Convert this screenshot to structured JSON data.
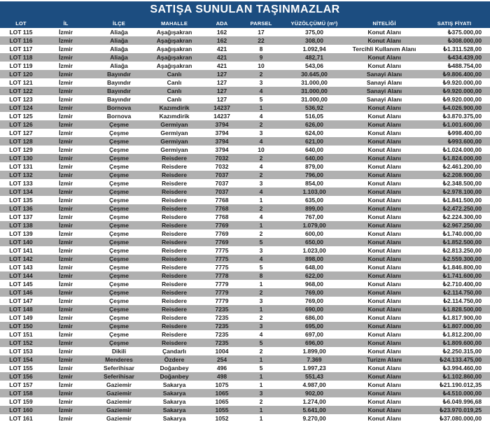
{
  "title": "SATIŞA SUNULAN TAŞINMAZLAR",
  "columns": [
    "LOT",
    "İL",
    "İLÇE",
    "MAHALLE",
    "ADA",
    "PARSEL",
    "YÜZÖLÇÜMÜ (m²)",
    "NİTELİĞİ",
    "SATIŞ FİYATI"
  ],
  "colors": {
    "header_bg": "#1c4d80",
    "header_text": "#ffffff",
    "row_bg": "#ffffff",
    "row_alt_bg": "#b0b0b0",
    "cell_text": "#1d1d1d"
  },
  "rows": [
    [
      "LOT 115",
      "İzmir",
      "Aliağa",
      "Aşağışakran",
      "162",
      "17",
      "375,00",
      "Konut Alanı",
      "₺375.000,00"
    ],
    [
      "LOT 116",
      "İzmir",
      "Aliağa",
      "Aşağışakran",
      "162",
      "22",
      "308,00",
      "Konut Alanı",
      "₺308.000,00"
    ],
    [
      "LOT 117",
      "İzmir",
      "Aliağa",
      "Aşağışakran",
      "421",
      "8",
      "1.092,94",
      "Tercihli Kullanım Alanı",
      "₺1.311.528,00"
    ],
    [
      "LOT 118",
      "İzmir",
      "Aliağa",
      "Aşağışakran",
      "421",
      "9",
      "482,71",
      "Konut Alanı",
      "₺434.439,00"
    ],
    [
      "LOT 119",
      "İzmir",
      "Aliağa",
      "Aşağışakran",
      "421",
      "10",
      "543,06",
      "Konut Alanı",
      "₺488.754,00"
    ],
    [
      "LOT 120",
      "İzmir",
      "Bayındır",
      "Canlı",
      "127",
      "2",
      "30.645,00",
      "Sanayi Alanı",
      "₺9.806.400,00"
    ],
    [
      "LOT 121",
      "İzmir",
      "Bayındır",
      "Canlı",
      "127",
      "3",
      "31.000,00",
      "Sanayi Alanı",
      "₺9.920.000,00"
    ],
    [
      "LOT 122",
      "İzmir",
      "Bayındır",
      "Canlı",
      "127",
      "4",
      "31.000,00",
      "Sanayi Alanı",
      "₺9.920.000,00"
    ],
    [
      "LOT 123",
      "İzmir",
      "Bayındır",
      "Canlı",
      "127",
      "5",
      "31.000,00",
      "Sanayi Alanı",
      "₺9.920.000,00"
    ],
    [
      "LOT 124",
      "İzmir",
      "Bornova",
      "Kazımdirik",
      "14237",
      "1",
      "536,92",
      "Konut Alanı",
      "₺4.026.900,00"
    ],
    [
      "LOT 125",
      "İzmir",
      "Bornova",
      "Kazımdirik",
      "14237",
      "4",
      "516,05",
      "Konut Alanı",
      "₺3.870.375,00"
    ],
    [
      "LOT 126",
      "İzmir",
      "Çeşme",
      "Germiyan",
      "3794",
      "2",
      "626,00",
      "Konut Alanı",
      "₺1.001.600,00"
    ],
    [
      "LOT 127",
      "İzmir",
      "Çeşme",
      "Germiyan",
      "3794",
      "3",
      "624,00",
      "Konut Alanı",
      "₺998.400,00"
    ],
    [
      "LOT 128",
      "İzmir",
      "Çeşme",
      "Germiyan",
      "3794",
      "4",
      "621,00",
      "Konut Alanı",
      "₺993.600,00"
    ],
    [
      "LOT 129",
      "İzmir",
      "Çeşme",
      "Germiyan",
      "3794",
      "10",
      "640,00",
      "Konut Alanı",
      "₺1.024.000,00"
    ],
    [
      "LOT 130",
      "İzmir",
      "Çeşme",
      "Reisdere",
      "7032",
      "2",
      "640,00",
      "Konut Alanı",
      "₺1.824.000,00"
    ],
    [
      "LOT 131",
      "İzmir",
      "Çeşme",
      "Reisdere",
      "7032",
      "4",
      "879,00",
      "Konut Alanı",
      "₺2.461.200,00"
    ],
    [
      "LOT 132",
      "İzmir",
      "Çeşme",
      "Reisdere",
      "7037",
      "2",
      "796,00",
      "Konut Alanı",
      "₺2.208.900,00"
    ],
    [
      "LOT 133",
      "İzmir",
      "Çeşme",
      "Reisdere",
      "7037",
      "3",
      "854,00",
      "Konut Alanı",
      "₺2.348.500,00"
    ],
    [
      "LOT 134",
      "İzmir",
      "Çeşme",
      "Reisdere",
      "7037",
      "4",
      "1.103,00",
      "Konut Alanı",
      "₺2.978.100,00"
    ],
    [
      "LOT 135",
      "İzmir",
      "Çeşme",
      "Reisdere",
      "7768",
      "1",
      "635,00",
      "Konut Alanı",
      "₺1.841.500,00"
    ],
    [
      "LOT 136",
      "İzmir",
      "Çeşme",
      "Reisdere",
      "7768",
      "2",
      "899,00",
      "Konut Alanı",
      "₺2.472.250,00"
    ],
    [
      "LOT 137",
      "İzmir",
      "Çeşme",
      "Reisdere",
      "7768",
      "4",
      "767,00",
      "Konut Alanı",
      "₺2.224.300,00"
    ],
    [
      "LOT 138",
      "İzmir",
      "Çeşme",
      "Reisdere",
      "7769",
      "1",
      "1.079,00",
      "Konut Alanı",
      "₺2.967.250,00"
    ],
    [
      "LOT 139",
      "İzmir",
      "Çeşme",
      "Reisdere",
      "7769",
      "2",
      "600,00",
      "Konut Alanı",
      "₺1.740.000,00"
    ],
    [
      "LOT 140",
      "İzmir",
      "Çeşme",
      "Reisdere",
      "7769",
      "5",
      "650,00",
      "Konut Alanı",
      "₺1.852.500,00"
    ],
    [
      "LOT 141",
      "İzmir",
      "Çeşme",
      "Reisdere",
      "7775",
      "3",
      "1.023,00",
      "Konut Alanı",
      "₺2.813.250,00"
    ],
    [
      "LOT 142",
      "İzmir",
      "Çeşme",
      "Reisdere",
      "7775",
      "4",
      "898,00",
      "Konut Alanı",
      "₺2.559.300,00"
    ],
    [
      "LOT 143",
      "İzmir",
      "Çeşme",
      "Reisdere",
      "7775",
      "5",
      "648,00",
      "Konut Alanı",
      "₺1.846.800,00"
    ],
    [
      "LOT 144",
      "İzmir",
      "Çeşme",
      "Reisdere",
      "7778",
      "8",
      "622,00",
      "Konut Alanı",
      "₺1.741.600,00"
    ],
    [
      "LOT 145",
      "İzmir",
      "Çeşme",
      "Reisdere",
      "7779",
      "1",
      "968,00",
      "Konut Alanı",
      "₺2.710.400,00"
    ],
    [
      "LOT 146",
      "İzmir",
      "Çeşme",
      "Reisdere",
      "7779",
      "2",
      "769,00",
      "Konut Alanı",
      "₺2.114.750,00"
    ],
    [
      "LOT 147",
      "İzmir",
      "Çeşme",
      "Reisdere",
      "7779",
      "3",
      "769,00",
      "Konut Alanı",
      "₺2.114.750,00"
    ],
    [
      "LOT 148",
      "İzmir",
      "Çeşme",
      "Reisdere",
      "7235",
      "1",
      "690,00",
      "Konut Alanı",
      "₺1.828.500,00"
    ],
    [
      "LOT 149",
      "İzmir",
      "Çeşme",
      "Reisdere",
      "7235",
      "2",
      "686,00",
      "Konut Alanı",
      "₺1.817.900,00"
    ],
    [
      "LOT 150",
      "İzmir",
      "Çeşme",
      "Reisdere",
      "7235",
      "3",
      "695,00",
      "Konut Alanı",
      "₺1.807.000,00"
    ],
    [
      "LOT 151",
      "İzmir",
      "Çeşme",
      "Reisdere",
      "7235",
      "4",
      "697,00",
      "Konut Alanı",
      "₺1.812.200,00"
    ],
    [
      "LOT 152",
      "İzmir",
      "Çeşme",
      "Reisdere",
      "7235",
      "5",
      "696,00",
      "Konut Alanı",
      "₺1.809.600,00"
    ],
    [
      "LOT 153",
      "İzmir",
      "Dikili",
      "Çandarlı",
      "1004",
      "2",
      "1.899,00",
      "Konut Alanı",
      "₺2.250.315,00"
    ],
    [
      "LOT 154",
      "İzmir",
      "Menderes",
      "Özdere",
      "254",
      "1",
      "7.369",
      "Turizm Alanı",
      "₺24.133.475,00"
    ],
    [
      "LOT 155",
      "İzmir",
      "Seferihisar",
      "Doğanbey",
      "496",
      "5",
      "1.997,23",
      "Konut Alanı",
      "₺3.994.460,00"
    ],
    [
      "LOT 156",
      "İzmir",
      "Seferihisar",
      "Doğanbey",
      "498",
      "1",
      "551,43",
      "Konut Alanı",
      "₺1.102.860,00"
    ],
    [
      "LOT 157",
      "İzmir",
      "Gaziemir",
      "Sakarya",
      "1075",
      "1",
      "4.987,00",
      "Konut Alanı",
      "₺21.190.012,35"
    ],
    [
      "LOT 158",
      "İzmir",
      "Gaziemir",
      "Sakarya",
      "1065",
      "3",
      "902,00",
      "Konut Alanı",
      "₺4.510.000,00"
    ],
    [
      "LOT 159",
      "İzmir",
      "Gaziemir",
      "Sakarya",
      "1065",
      "2",
      "1.274,00",
      "Konut Alanı",
      "₺6.049.996,68"
    ],
    [
      "LOT 160",
      "İzmir",
      "Gaziemir",
      "Sakarya",
      "1055",
      "1",
      "5.641,00",
      "Konut Alanı",
      "₺23.970.019,25"
    ],
    [
      "LOT 161",
      "İzmir",
      "Gaziemir",
      "Sakarya",
      "1052",
      "1",
      "9.270,00",
      "Konut Alanı",
      "₺37.080.000,00"
    ]
  ]
}
